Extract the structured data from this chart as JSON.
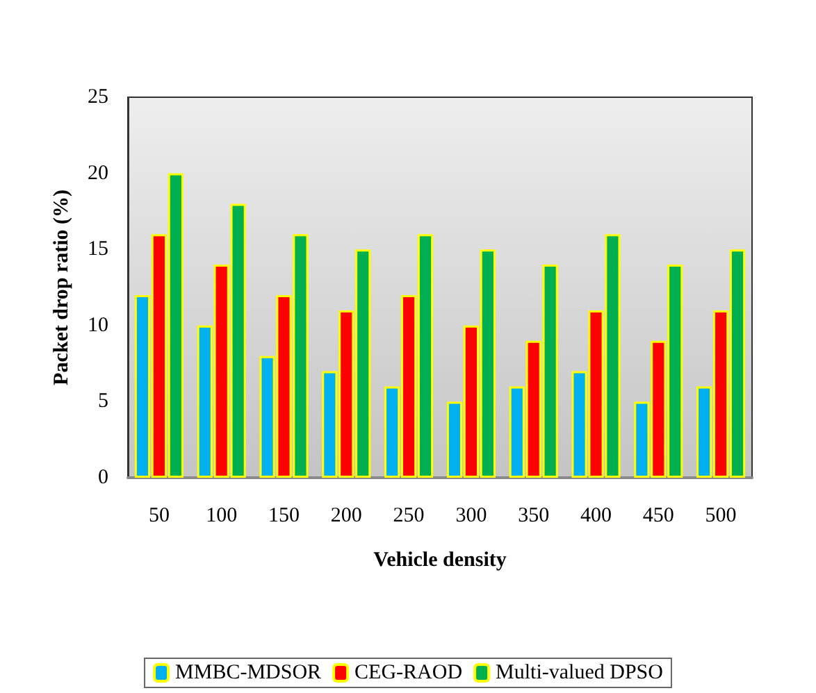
{
  "chart_data": {
    "type": "bar",
    "xlabel": "Vehicle density",
    "ylabel": "Packet drop ratio (%)",
    "categories": [
      "50",
      "100",
      "150",
      "200",
      "250",
      "300",
      "350",
      "400",
      "450",
      "500"
    ],
    "series": [
      {
        "name": "MMBC-MDSOR",
        "color": "#00b0f0",
        "values": [
          12,
          10,
          8,
          7,
          6,
          5,
          6,
          7,
          5,
          6
        ]
      },
      {
        "name": "CEG-RAOD",
        "color": "#ff0000",
        "values": [
          16,
          14,
          12,
          11,
          12,
          10,
          9,
          11,
          9,
          11
        ]
      },
      {
        "name": "Multi-valued DPSO",
        "color": "#00b050",
        "values": [
          20,
          18,
          16,
          15,
          16,
          15,
          14,
          16,
          14,
          15
        ]
      }
    ],
    "ylim": [
      0,
      25
    ],
    "yticks": [
      0,
      5,
      10,
      15,
      20,
      25
    ],
    "grid": false,
    "legend": "bottom"
  }
}
